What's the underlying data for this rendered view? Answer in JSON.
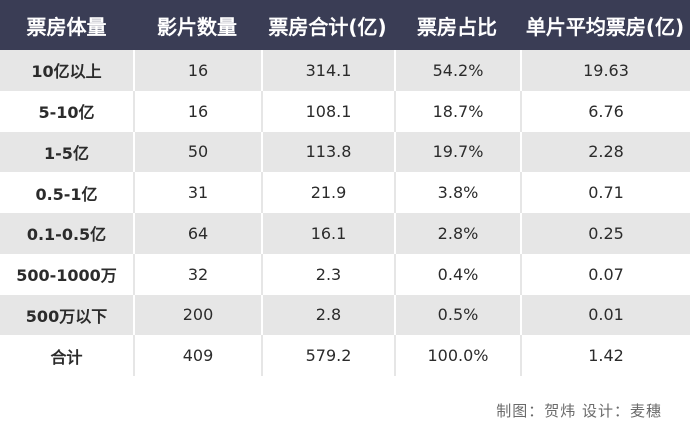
{
  "table": {
    "headers": [
      "票房体量",
      "影片数量",
      "票房合计(亿)",
      "票房占比",
      "单片平均票房(亿)"
    ],
    "rows": [
      [
        "10亿以上",
        "16",
        "314.1",
        "54.2%",
        "19.63"
      ],
      [
        "5-10亿",
        "16",
        "108.1",
        "18.7%",
        "6.76"
      ],
      [
        "1-5亿",
        "50",
        "113.8",
        "19.7%",
        "2.28"
      ],
      [
        "0.5-1亿",
        "31",
        "21.9",
        "3.8%",
        "0.71"
      ],
      [
        "0.1-0.5亿",
        "64",
        "16.1",
        "2.8%",
        "0.25"
      ],
      [
        "500-1000万",
        "32",
        "2.3",
        "0.4%",
        "0.07"
      ],
      [
        "500万以下",
        "200",
        "2.8",
        "0.5%",
        "0.01"
      ],
      [
        "合计",
        "409",
        "579.2",
        "100.0%",
        "1.42"
      ]
    ]
  },
  "credit": "制图：贺炜   设计：麦穗",
  "colors": {
    "header_bg": "#3a3d55",
    "header_text": "#ffffff",
    "row_alt_bg": "#e6e6e6"
  }
}
